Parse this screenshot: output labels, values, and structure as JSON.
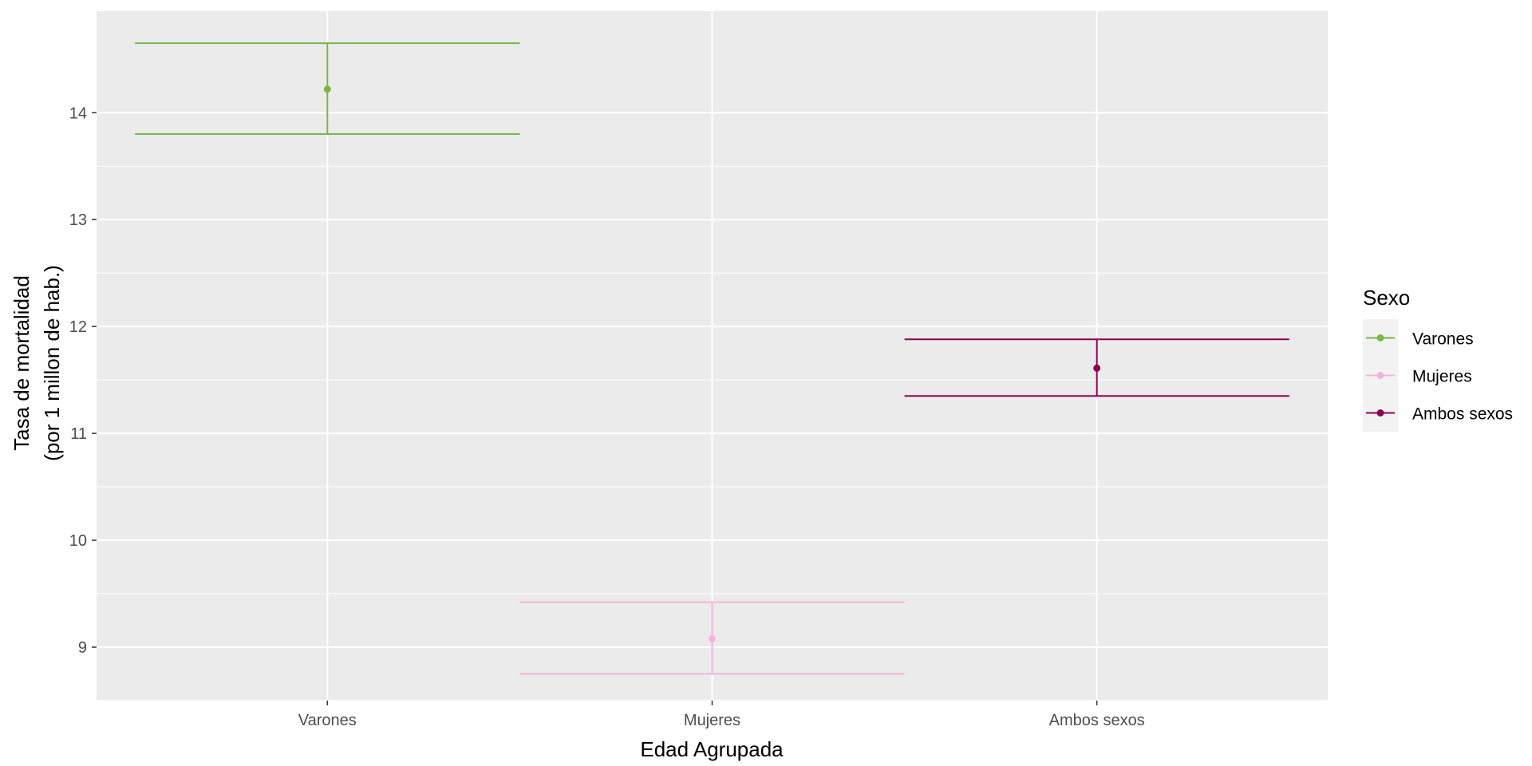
{
  "chart_data": {
    "type": "errorbar",
    "title": "",
    "xlabel": "Edad Agrupada",
    "ylabel_lines": [
      "Tasa de mortalidad",
      "(por 1 millon de hab.)"
    ],
    "categories": [
      "Varones",
      "Mujeres",
      "Ambos sexos"
    ],
    "ylim": [
      8.5,
      14.95
    ],
    "yticks": [
      9,
      10,
      11,
      12,
      13,
      14
    ],
    "grid": true,
    "legend": {
      "title": "Sexo",
      "position": "right",
      "entries": [
        "Varones",
        "Mujeres",
        "Ambos sexos"
      ]
    },
    "series": [
      {
        "name": "Varones",
        "category": "Varones",
        "value": 14.22,
        "lower": 13.8,
        "upper": 14.65,
        "color": "#7AB648"
      },
      {
        "name": "Mujeres",
        "category": "Mujeres",
        "value": 9.08,
        "lower": 8.75,
        "upper": 9.42,
        "color": "#F2B5D9"
      },
      {
        "name": "Ambos sexos",
        "category": "Ambos sexos",
        "value": 11.61,
        "lower": 11.35,
        "upper": 11.88,
        "color": "#8E0152"
      }
    ],
    "colors": {
      "panel": "#EBEBEB",
      "grid": "#FFFFFF",
      "legend_key": "#F2F2F2"
    }
  }
}
